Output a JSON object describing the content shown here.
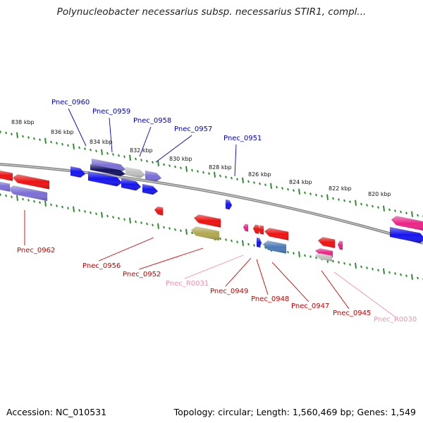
{
  "title": "Polynucleobacter necessarius subsp. necessarius STIR1, compl...",
  "footer": {
    "accession": "Accession: NC_010531",
    "stats": "Topology: circular; Length: 1,560,469 bp; Genes: 1,549"
  },
  "colors": {
    "backbone": "#888888",
    "tick": "#2e8b2e",
    "forward_label": "#0000c8",
    "reverse_label": "#cc0000",
    "rna_label": "#f090b0",
    "blue": "#1414f0",
    "red": "#ee1111",
    "lavender": "#7b6fd6",
    "pink": "#ee2288",
    "gray": "#c0c0c0",
    "olive": "#b0a850",
    "steel": "#4a7ab8",
    "navy": "#101060"
  },
  "kbp_labels": [
    "838 kbp",
    "836 kbp",
    "834 kbp",
    "832 kbp",
    "830 kbp",
    "828 kbp",
    "826 kbp",
    "824 kbp",
    "822 kbp",
    "820 kbp"
  ],
  "gene_labels": [
    {
      "text": "Pnec_0960",
      "kind": "forward"
    },
    {
      "text": "Pnec_0959",
      "kind": "forward"
    },
    {
      "text": "Pnec_0958",
      "kind": "forward"
    },
    {
      "text": "Pnec_0957",
      "kind": "forward"
    },
    {
      "text": "Pnec_0951",
      "kind": "forward"
    },
    {
      "text": "Pnec_0962",
      "kind": "reverse"
    },
    {
      "text": "Pnec_0956",
      "kind": "reverse"
    },
    {
      "text": "Pnec_0952",
      "kind": "reverse"
    },
    {
      "text": "Pnec_R0031",
      "kind": "rna"
    },
    {
      "text": "Pnec_0949",
      "kind": "reverse"
    },
    {
      "text": "Pnec_0948",
      "kind": "reverse"
    },
    {
      "text": "Pnec_0947",
      "kind": "reverse"
    },
    {
      "text": "Pnec_0945",
      "kind": "reverse"
    },
    {
      "text": "Pnec_R0030",
      "kind": "rna"
    }
  ],
  "features": [
    {
      "name": "gene-0962-red-upper",
      "color": "red",
      "strand": "reverse"
    },
    {
      "name": "gene-0962-red",
      "color": "red",
      "strand": "reverse"
    },
    {
      "name": "gene-0962-lavender",
      "color": "lavender",
      "strand": "reverse"
    },
    {
      "name": "gene-0962-lavender-left",
      "color": "lavender",
      "strand": "reverse"
    },
    {
      "name": "gene-0960",
      "color": "blue",
      "strand": "forward"
    },
    {
      "name": "gene-0959-lavender",
      "color": "lavender",
      "strand": "forward"
    },
    {
      "name": "gene-0959-navy",
      "color": "navy",
      "strand": "forward"
    },
    {
      "name": "gene-0959-blue",
      "color": "blue",
      "strand": "forward"
    },
    {
      "name": "gene-0958-gray",
      "color": "gray",
      "strand": "forward"
    },
    {
      "name": "gene-0958-blue",
      "color": "blue",
      "strand": "forward"
    },
    {
      "name": "gene-0957-lavender",
      "color": "lavender",
      "strand": "forward"
    },
    {
      "name": "gene-0957-blue",
      "color": "blue",
      "strand": "forward"
    },
    {
      "name": "gene-0956",
      "color": "red",
      "strand": "reverse"
    },
    {
      "name": "gene-0951",
      "color": "blue",
      "strand": "forward"
    },
    {
      "name": "gene-0952-red",
      "color": "red",
      "strand": "reverse"
    },
    {
      "name": "gene-0952-olive",
      "color": "olive",
      "strand": "reverse"
    },
    {
      "name": "rna-R0031",
      "color": "pink",
      "strand": "reverse"
    },
    {
      "name": "gene-0949",
      "color": "red",
      "strand": "reverse"
    },
    {
      "name": "gene-0948",
      "color": "red",
      "strand": "reverse"
    },
    {
      "name": "gene-0947-red",
      "color": "red",
      "strand": "reverse"
    },
    {
      "name": "gene-0947-steel",
      "color": "steel",
      "strand": "reverse"
    },
    {
      "name": "gene-0948-blue",
      "color": "blue",
      "strand": "forward"
    },
    {
      "name": "gene-0945-red",
      "color": "red",
      "strand": "reverse"
    },
    {
      "name": "gene-0945-pink",
      "color": "pink",
      "strand": "reverse"
    },
    {
      "name": "gene-0945-gray",
      "color": "gray",
      "strand": "reverse"
    },
    {
      "name": "rna-R0030",
      "color": "pink",
      "strand": "reverse"
    },
    {
      "name": "gene-right-pink",
      "color": "pink",
      "strand": "reverse"
    },
    {
      "name": "gene-right-blue",
      "color": "blue",
      "strand": "forward"
    }
  ]
}
